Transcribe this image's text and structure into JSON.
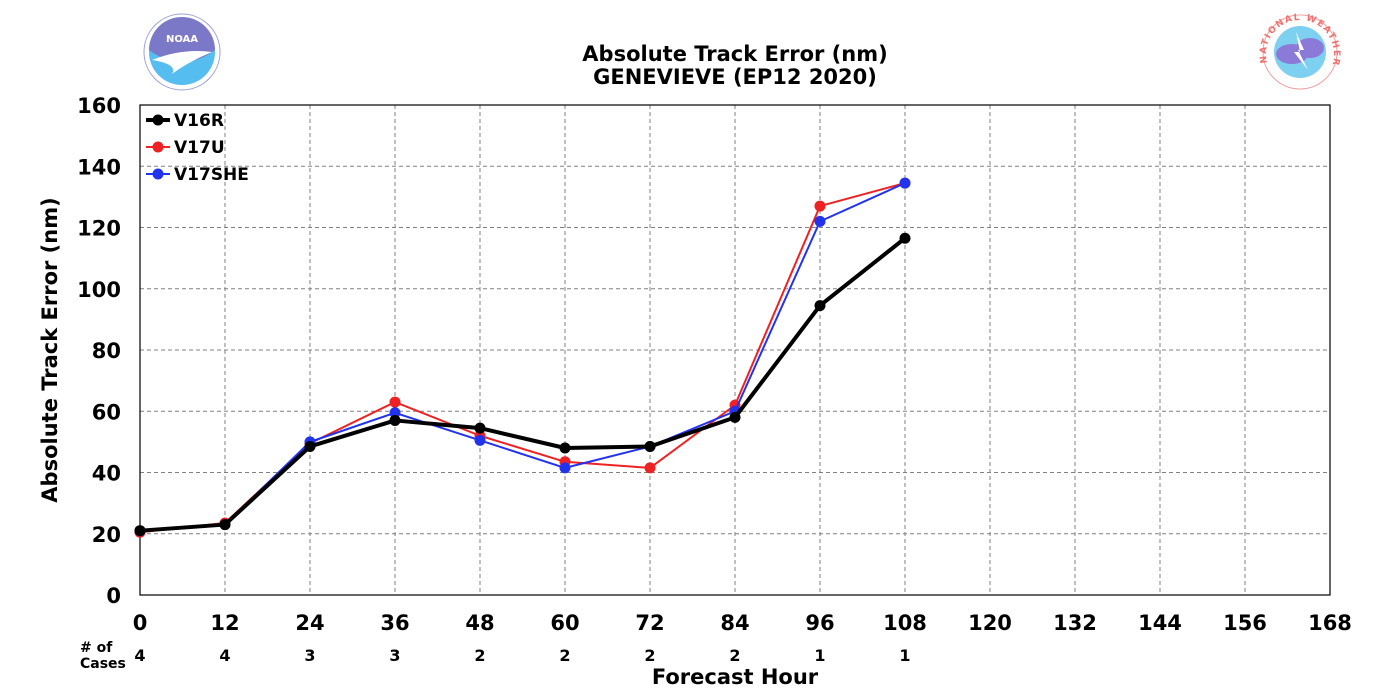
{
  "chart_data": {
    "type": "line",
    "title": "Absolute Track Error (nm)",
    "subtitle": "GENEVIEVE (EP12 2020)",
    "xlabel": "Forecast Hour",
    "ylabel": "Absolute Track Error (nm)",
    "xlim": [
      0,
      168
    ],
    "ylim": [
      0,
      160
    ],
    "xticks": [
      0,
      12,
      24,
      36,
      48,
      60,
      72,
      84,
      96,
      108,
      120,
      132,
      144,
      156,
      168
    ],
    "yticks": [
      0,
      20,
      40,
      60,
      80,
      100,
      120,
      140,
      160
    ],
    "grid": true,
    "legend_position": "top-left",
    "cases_label_line1": "# of",
    "cases_label_line2": "Cases",
    "cases": [
      {
        "x": 0,
        "n": "4"
      },
      {
        "x": 12,
        "n": "4"
      },
      {
        "x": 24,
        "n": "3"
      },
      {
        "x": 36,
        "n": "3"
      },
      {
        "x": 48,
        "n": "2"
      },
      {
        "x": 60,
        "n": "2"
      },
      {
        "x": 72,
        "n": "2"
      },
      {
        "x": 84,
        "n": "2"
      },
      {
        "x": 96,
        "n": "1"
      },
      {
        "x": 108,
        "n": "1"
      }
    ],
    "series": [
      {
        "name": "V16R",
        "color": "#000000",
        "x": [
          0,
          12,
          24,
          36,
          48,
          60,
          72,
          84,
          96,
          108
        ],
        "values": [
          21,
          23,
          48.5,
          57,
          54.5,
          48,
          48.5,
          58,
          94.5,
          116.5
        ]
      },
      {
        "name": "V17U",
        "color": "#ee2222",
        "x": [
          0,
          12,
          24,
          36,
          48,
          60,
          72,
          84,
          96,
          108
        ],
        "values": [
          20.5,
          23.5,
          49.5,
          63,
          52,
          43.5,
          41.5,
          62,
          127,
          134.5
        ]
      },
      {
        "name": "V17SHE",
        "color": "#2233ee",
        "x": [
          0,
          12,
          24,
          36,
          48,
          60,
          72,
          84,
          96,
          108
        ],
        "values": [
          21,
          23,
          50,
          59.5,
          50.5,
          41.5,
          48.5,
          60,
          122,
          134.5
        ]
      }
    ]
  },
  "logos": {
    "noaa_text": "NOAA",
    "nws_text": "NATIONAL WEATHER SERVICE"
  }
}
